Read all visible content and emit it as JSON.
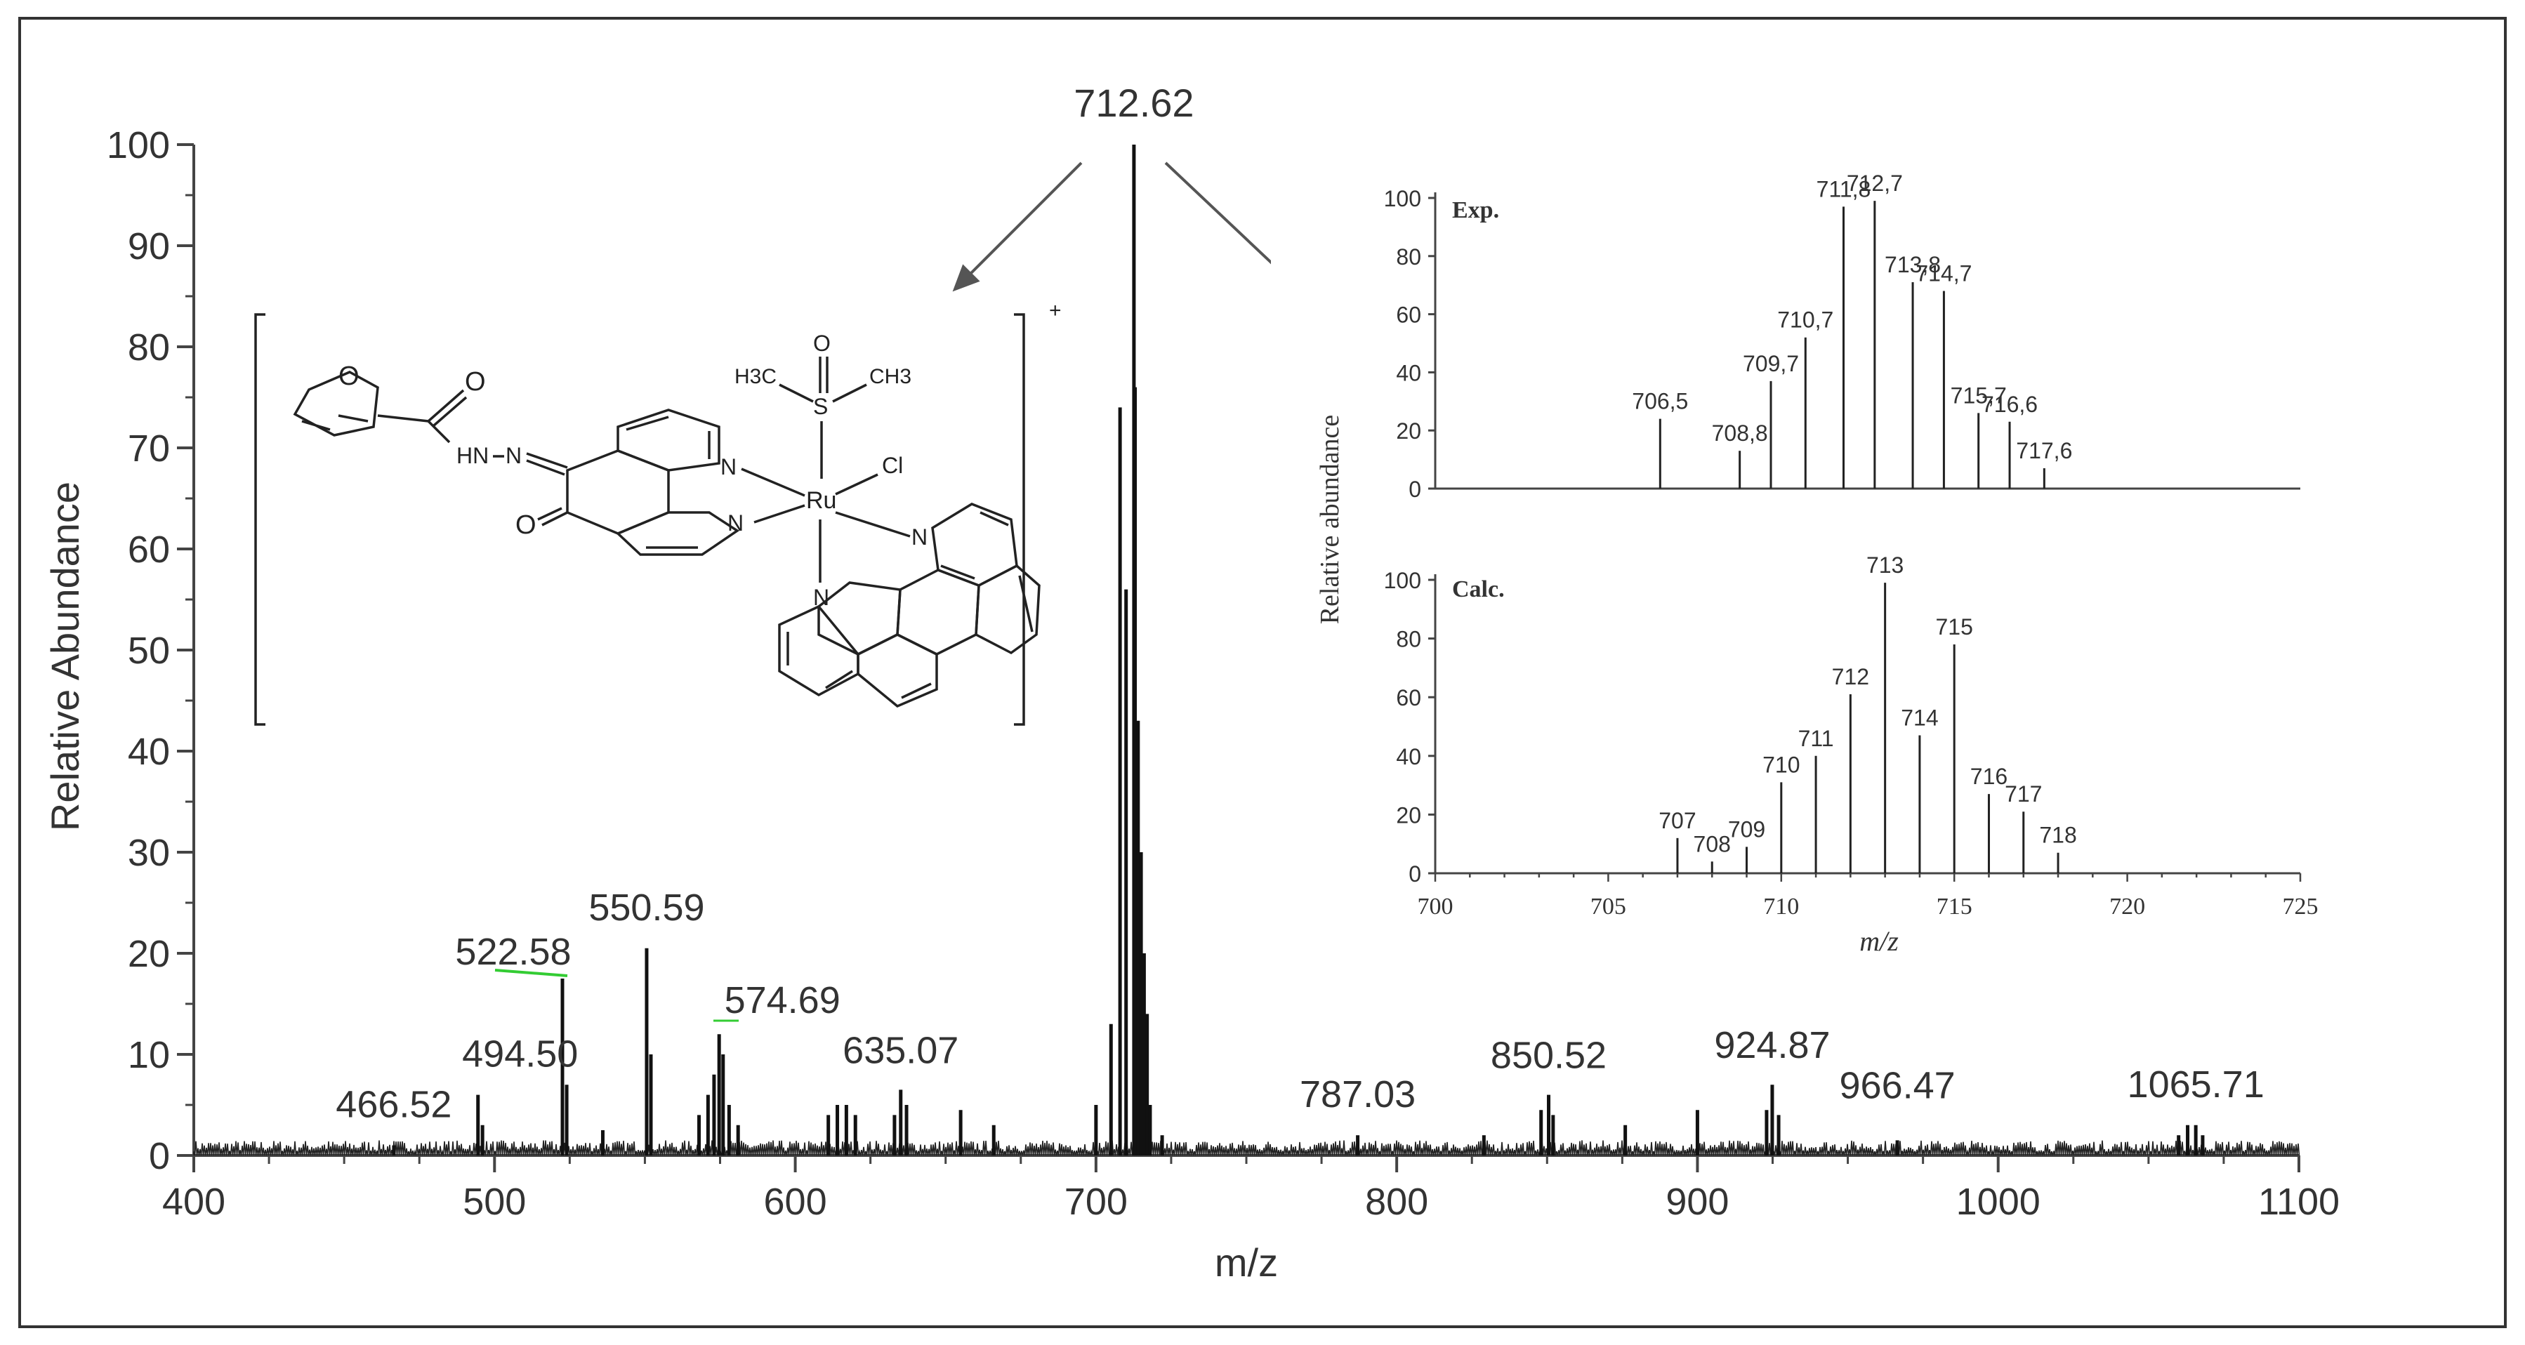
{
  "colors": {
    "ink": "#222222",
    "frame": "#333333",
    "highlight": "#33cc33"
  },
  "chart_data": [
    {
      "type": "bar",
      "title": "",
      "xlabel": "m/z",
      "ylabel": "Relative Abundance",
      "xlim": [
        400,
        1100
      ],
      "ylim": [
        0,
        100
      ],
      "xticks": [
        400,
        500,
        600,
        700,
        800,
        900,
        1000,
        1100
      ],
      "yticks": [
        0,
        10,
        20,
        30,
        40,
        50,
        60,
        70,
        80,
        90,
        100
      ],
      "x": [
        466.52,
        494.5,
        496,
        522.58,
        524,
        536,
        550.59,
        552,
        568,
        571,
        573,
        574.69,
        576,
        578,
        581,
        611,
        614,
        617,
        620,
        633,
        635.07,
        637,
        655,
        666,
        700,
        705,
        708,
        710,
        712.62,
        713,
        714,
        715,
        716,
        717,
        718,
        722,
        787.03,
        829,
        848,
        850.52,
        852,
        876,
        900,
        923,
        924.87,
        927,
        966.47,
        1060,
        1063,
        1065.71,
        1068
      ],
      "values": [
        1,
        6,
        3,
        17.5,
        7,
        2.5,
        20.5,
        10,
        4,
        6,
        8,
        12,
        10,
        5,
        3,
        4,
        5,
        5,
        4,
        4,
        6.5,
        5,
        4.5,
        3,
        5,
        13,
        74,
        56,
        100,
        76,
        43,
        30,
        20,
        14,
        5,
        2,
        2,
        2,
        4.5,
        6,
        4,
        3,
        4.5,
        4.5,
        7,
        4,
        1.5,
        2,
        3,
        3,
        2
      ],
      "peak_labels": [
        {
          "x": 712.62,
          "text": "712.62"
        },
        {
          "x": 466.52,
          "text": "466.52"
        },
        {
          "x": 494.5,
          "text": "494.50"
        },
        {
          "x": 522.58,
          "text": "522.58"
        },
        {
          "x": 550.59,
          "text": "550.59"
        },
        {
          "x": 574.69,
          "text": "574.69"
        },
        {
          "x": 635.07,
          "text": "635.07"
        },
        {
          "x": 787.03,
          "text": "787.03"
        },
        {
          "x": 850.52,
          "text": "850.52"
        },
        {
          "x": 924.87,
          "text": "924.87"
        },
        {
          "x": 966.47,
          "text": "966.47"
        },
        {
          "x": 1065.71,
          "text": "1065.71"
        }
      ]
    },
    {
      "type": "bar",
      "title": "Exp.",
      "ylabel": "Relative abundance",
      "xlim": [
        700,
        725
      ],
      "ylim": [
        0,
        100
      ],
      "yticks": [
        0,
        20,
        40,
        60,
        80,
        100
      ],
      "x": [
        706.5,
        708.8,
        709.7,
        710.7,
        711.8,
        712.7,
        713.8,
        714.7,
        715.7,
        716.6,
        717.6
      ],
      "values": [
        24,
        13,
        37,
        52,
        97,
        99,
        71,
        68,
        26,
        23,
        7
      ],
      "labels": [
        "706,5",
        "708,8",
        "709,7",
        "710,7",
        "711,8",
        "712,7",
        "713,8",
        "714,7",
        "715,7",
        "716,6",
        "717,6"
      ]
    },
    {
      "type": "bar",
      "title": "Calc.",
      "xlabel": "m/z",
      "xlim": [
        700,
        725
      ],
      "ylim": [
        0,
        100
      ],
      "xticks": [
        700,
        705,
        710,
        715,
        720,
        725
      ],
      "yticks": [
        0,
        20,
        40,
        60,
        80,
        100
      ],
      "x": [
        707,
        708,
        709,
        710,
        711,
        712,
        713,
        714,
        715,
        716,
        717,
        718
      ],
      "values": [
        12,
        4,
        9,
        31,
        40,
        61,
        99,
        47,
        78,
        27,
        21,
        7
      ],
      "labels": [
        "707",
        "708",
        "709",
        "710",
        "711",
        "712",
        "713",
        "714",
        "715",
        "716",
        "717",
        "718"
      ]
    }
  ],
  "structure": {
    "atoms": [
      "O",
      "O",
      "HN",
      "N",
      "O",
      "N",
      "N",
      "Ru",
      "Cl",
      "S",
      "O",
      "H3C",
      "CH3",
      "N",
      "N"
    ],
    "charge": "+"
  }
}
